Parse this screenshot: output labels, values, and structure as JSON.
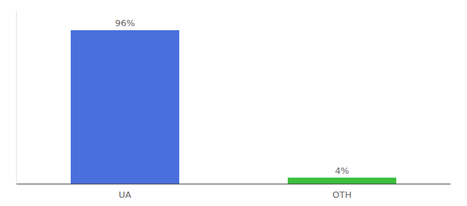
{
  "chart_data": {
    "type": "bar",
    "categories": [
      "UA",
      "OTH"
    ],
    "values": [
      96,
      4
    ],
    "value_labels": [
      "96%",
      "4%"
    ],
    "colors": [
      "#4a6fdc",
      "#3dbf3d"
    ],
    "ylim": [
      0,
      108
    ],
    "grid": false,
    "data_labels": true,
    "tick_labels": "x"
  }
}
